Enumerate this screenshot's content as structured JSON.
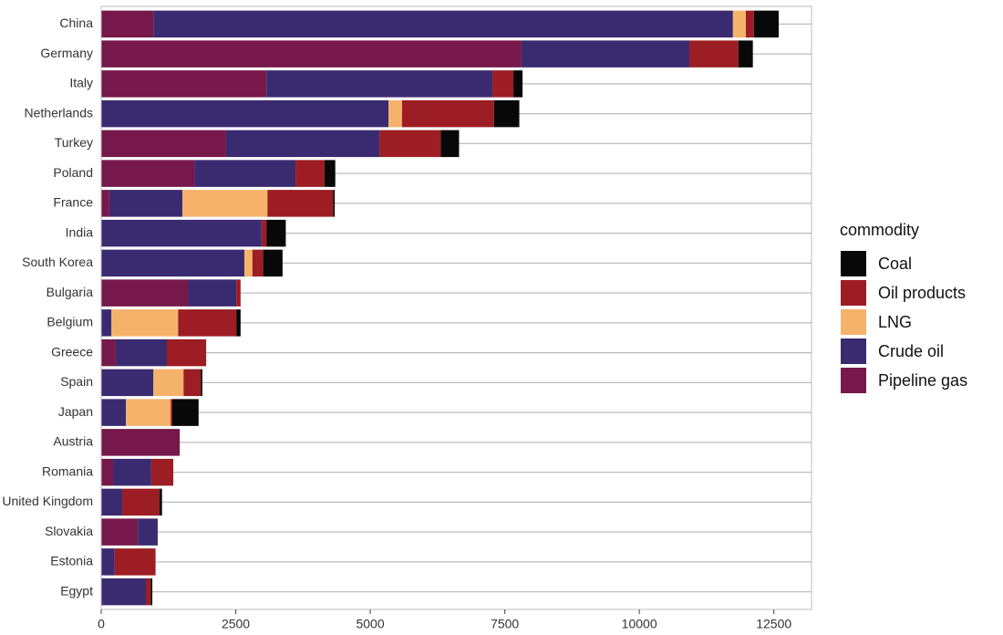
{
  "chart_data": {
    "type": "stacked-barh",
    "categories": [
      "China",
      "Germany",
      "Italy",
      "Netherlands",
      "Turkey",
      "Poland",
      "France",
      "India",
      "South Korea",
      "Bulgaria",
      "Belgium",
      "Greece",
      "Spain",
      "Japan",
      "Austria",
      "Romania",
      "United Kingdom",
      "Slovakia",
      "Estonia",
      "Egypt"
    ],
    "series": [
      {
        "name": "Pipeline gas",
        "color": "#76184a",
        "values": [
          970,
          7810,
          3070,
          0,
          2320,
          1730,
          150,
          0,
          0,
          1610,
          0,
          270,
          0,
          0,
          1460,
          220,
          0,
          680,
          0,
          0
        ]
      },
      {
        "name": "Crude oil",
        "color": "#3a2b71",
        "values": [
          10770,
          3120,
          4200,
          5340,
          2850,
          1880,
          1360,
          2980,
          2660,
          900,
          190,
          950,
          970,
          460,
          0,
          710,
          390,
          370,
          250,
          830
        ]
      },
      {
        "name": "LNG",
        "color": "#f5b26b",
        "values": [
          240,
          0,
          0,
          250,
          0,
          0,
          1580,
          0,
          150,
          0,
          1240,
          0,
          560,
          830,
          0,
          0,
          0,
          0,
          0,
          0
        ]
      },
      {
        "name": "Oil products",
        "color": "#9c1d23",
        "values": [
          150,
          910,
          390,
          1710,
          1140,
          540,
          1220,
          90,
          200,
          80,
          1080,
          730,
          320,
          30,
          0,
          410,
          690,
          0,
          760,
          90
        ]
      },
      {
        "name": "Coal",
        "color": "#080808",
        "values": [
          460,
          270,
          170,
          470,
          340,
          200,
          30,
          360,
          360,
          0,
          80,
          0,
          30,
          490,
          0,
          0,
          50,
          0,
          0,
          30
        ]
      }
    ],
    "legend_title": "commodity",
    "xlim": [
      0,
      13200
    ],
    "xticks": [
      0,
      2500,
      5000,
      7500,
      10000,
      12500
    ],
    "grid": true
  }
}
